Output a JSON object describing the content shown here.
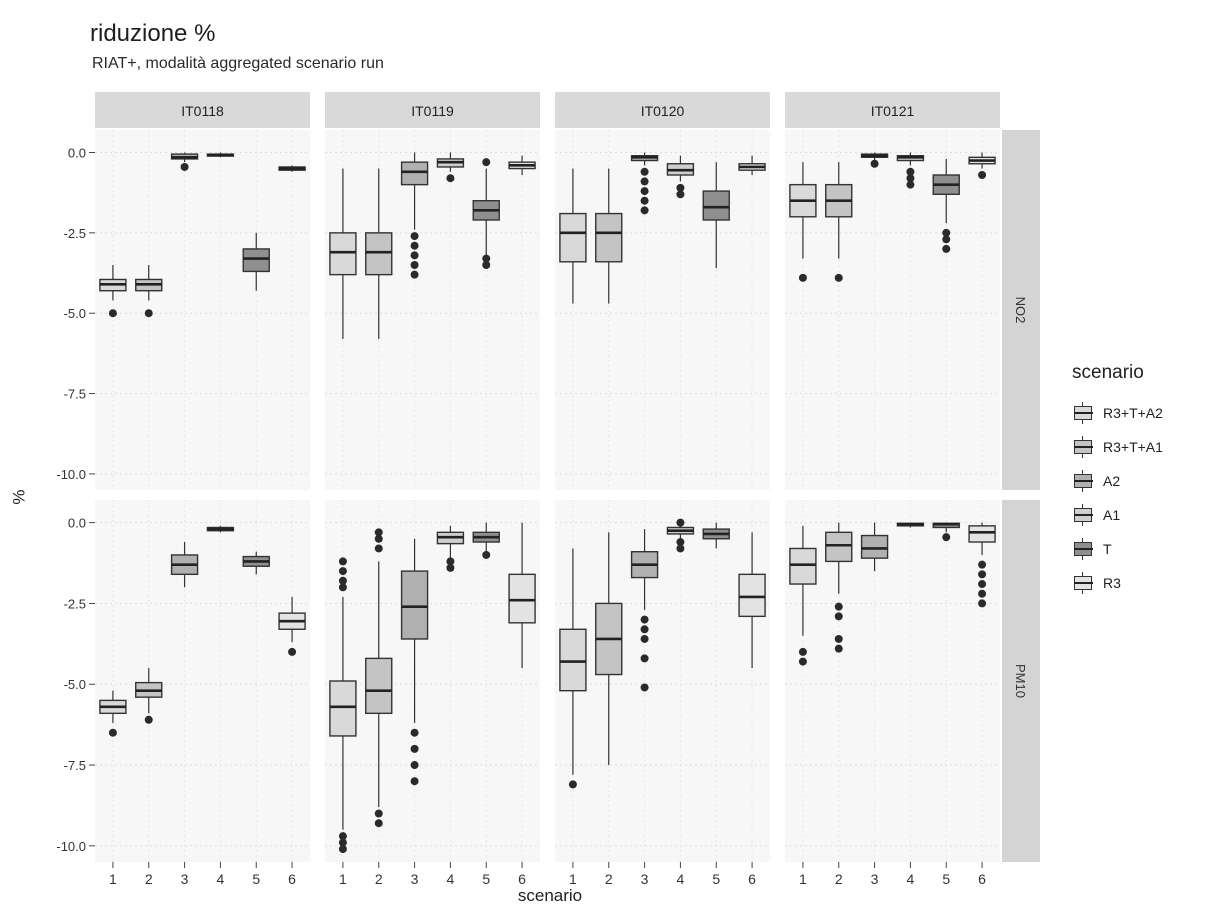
{
  "chart_data": {
    "type": "box",
    "title": "riduzione %",
    "subtitle": "RIAT+, modalità aggregated scenario run",
    "xlabel": "scenario",
    "ylabel": "%",
    "x_ticks": [
      "1",
      "2",
      "3",
      "4",
      "5",
      "6"
    ],
    "y_ticks": [
      "0.0",
      "-2.5",
      "-5.0",
      "-7.5",
      "-10.0"
    ],
    "ylim": [
      -10.5,
      0.7
    ],
    "facet_columns": [
      "IT0118",
      "IT0119",
      "IT0120",
      "IT0121"
    ],
    "facet_rows": [
      "NO2",
      "PM10"
    ],
    "legend": {
      "title": "scenario",
      "position": "right",
      "entries": [
        {
          "label": "R3+T+A2",
          "color": "#d9d9d9"
        },
        {
          "label": "R3+T+A1",
          "color": "#c4c4c4"
        },
        {
          "label": "A2",
          "color": "#b0b0b0"
        },
        {
          "label": "A1",
          "color": "#cfcfcf"
        },
        {
          "label": "T",
          "color": "#8f8f8f"
        },
        {
          "label": "R3",
          "color": "#e3e3e3"
        }
      ]
    },
    "panels": [
      {
        "station": "IT0118",
        "pollutant": "NO2",
        "boxes": [
          {
            "scenario": "1",
            "min": -4.6,
            "q1": -4.3,
            "median": -4.1,
            "q3": -3.95,
            "max": -3.5,
            "outliers": [
              -5.0
            ]
          },
          {
            "scenario": "2",
            "min": -4.6,
            "q1": -4.3,
            "median": -4.1,
            "q3": -3.95,
            "max": -3.5,
            "outliers": [
              -5.0
            ]
          },
          {
            "scenario": "3",
            "min": -0.3,
            "q1": -0.2,
            "median": -0.15,
            "q3": -0.05,
            "max": 0.0,
            "outliers": [
              -0.45
            ]
          },
          {
            "scenario": "4",
            "min": -0.15,
            "q1": -0.1,
            "median": -0.08,
            "q3": -0.05,
            "max": 0.0,
            "outliers": []
          },
          {
            "scenario": "5",
            "min": -4.3,
            "q1": -3.7,
            "median": -3.3,
            "q3": -3.0,
            "max": -2.5,
            "outliers": []
          },
          {
            "scenario": "6",
            "min": -0.6,
            "q1": -0.55,
            "median": -0.5,
            "q3": -0.45,
            "max": -0.4,
            "outliers": []
          }
        ]
      },
      {
        "station": "IT0119",
        "pollutant": "NO2",
        "boxes": [
          {
            "scenario": "1",
            "min": -5.8,
            "q1": -3.8,
            "median": -3.1,
            "q3": -2.5,
            "max": -0.5,
            "outliers": []
          },
          {
            "scenario": "2",
            "min": -5.8,
            "q1": -3.8,
            "median": -3.1,
            "q3": -2.5,
            "max": -0.5,
            "outliers": []
          },
          {
            "scenario": "3",
            "min": -2.4,
            "q1": -1.0,
            "median": -0.6,
            "q3": -0.3,
            "max": 0.0,
            "outliers": [
              -2.6,
              -2.9,
              -3.2,
              -3.5,
              -3.8
            ]
          },
          {
            "scenario": "4",
            "min": -0.6,
            "q1": -0.45,
            "median": -0.3,
            "q3": -0.2,
            "max": 0.0,
            "outliers": [
              -0.8
            ]
          },
          {
            "scenario": "5",
            "min": -3.2,
            "q1": -2.1,
            "median": -1.8,
            "q3": -1.5,
            "max": -0.5,
            "outliers": [
              -0.3,
              -3.3,
              -3.5
            ]
          },
          {
            "scenario": "6",
            "min": -0.7,
            "q1": -0.5,
            "median": -0.4,
            "q3": -0.3,
            "max": -0.1,
            "outliers": []
          }
        ]
      },
      {
        "station": "IT0120",
        "pollutant": "NO2",
        "boxes": [
          {
            "scenario": "1",
            "min": -4.7,
            "q1": -3.4,
            "median": -2.5,
            "q3": -1.9,
            "max": -0.5,
            "outliers": []
          },
          {
            "scenario": "2",
            "min": -4.7,
            "q1": -3.4,
            "median": -2.5,
            "q3": -1.9,
            "max": -0.5,
            "outliers": []
          },
          {
            "scenario": "3",
            "min": -0.4,
            "q1": -0.25,
            "median": -0.15,
            "q3": -0.1,
            "max": 0.0,
            "outliers": [
              -0.6,
              -0.9,
              -1.2,
              -1.5,
              -1.8
            ]
          },
          {
            "scenario": "4",
            "min": -0.9,
            "q1": -0.7,
            "median": -0.55,
            "q3": -0.35,
            "max": -0.1,
            "outliers": [
              -1.1,
              -1.3
            ]
          },
          {
            "scenario": "5",
            "min": -3.6,
            "q1": -2.1,
            "median": -1.7,
            "q3": -1.2,
            "max": -0.3,
            "outliers": []
          },
          {
            "scenario": "6",
            "min": -0.7,
            "q1": -0.55,
            "median": -0.45,
            "q3": -0.35,
            "max": -0.1,
            "outliers": []
          }
        ]
      },
      {
        "station": "IT0121",
        "pollutant": "NO2",
        "boxes": [
          {
            "scenario": "1",
            "min": -3.3,
            "q1": -2.0,
            "median": -1.5,
            "q3": -1.0,
            "max": -0.3,
            "outliers": [
              -3.9
            ]
          },
          {
            "scenario": "2",
            "min": -3.3,
            "q1": -2.0,
            "median": -1.5,
            "q3": -1.0,
            "max": -0.3,
            "outliers": [
              -3.9
            ]
          },
          {
            "scenario": "3",
            "min": -0.25,
            "q1": -0.15,
            "median": -0.1,
            "q3": -0.05,
            "max": 0.0,
            "outliers": [
              -0.35
            ]
          },
          {
            "scenario": "4",
            "min": -0.4,
            "q1": -0.25,
            "median": -0.15,
            "q3": -0.1,
            "max": 0.0,
            "outliers": [
              -0.6,
              -0.8,
              -1.0
            ]
          },
          {
            "scenario": "5",
            "min": -2.2,
            "q1": -1.3,
            "median": -1.0,
            "q3": -0.7,
            "max": -0.2,
            "outliers": [
              -2.5,
              -2.7,
              -3.0
            ]
          },
          {
            "scenario": "6",
            "min": -0.5,
            "q1": -0.35,
            "median": -0.25,
            "q3": -0.15,
            "max": 0.0,
            "outliers": [
              -0.7
            ]
          }
        ]
      },
      {
        "station": "IT0118",
        "pollutant": "PM10",
        "boxes": [
          {
            "scenario": "1",
            "min": -6.2,
            "q1": -5.9,
            "median": -5.7,
            "q3": -5.5,
            "max": -5.2,
            "outliers": [
              -6.5
            ]
          },
          {
            "scenario": "2",
            "min": -5.9,
            "q1": -5.4,
            "median": -5.2,
            "q3": -4.95,
            "max": -4.5,
            "outliers": [
              -6.1
            ]
          },
          {
            "scenario": "3",
            "min": -2.0,
            "q1": -1.6,
            "median": -1.3,
            "q3": -1.0,
            "max": -0.6,
            "outliers": []
          },
          {
            "scenario": "4",
            "min": -0.3,
            "q1": -0.25,
            "median": -0.2,
            "q3": -0.15,
            "max": -0.1,
            "outliers": []
          },
          {
            "scenario": "5",
            "min": -1.6,
            "q1": -1.35,
            "median": -1.2,
            "q3": -1.05,
            "max": -0.9,
            "outliers": []
          },
          {
            "scenario": "6",
            "min": -3.7,
            "q1": -3.3,
            "median": -3.05,
            "q3": -2.8,
            "max": -2.3,
            "outliers": [
              -4.0
            ]
          }
        ]
      },
      {
        "station": "IT0119",
        "pollutant": "PM10",
        "boxes": [
          {
            "scenario": "1",
            "min": -9.5,
            "q1": -6.6,
            "median": -5.7,
            "q3": -4.9,
            "max": -2.3,
            "outliers": [
              -1.2,
              -1.5,
              -1.8,
              -2.0,
              -9.7,
              -9.9,
              -10.1
            ]
          },
          {
            "scenario": "2",
            "min": -8.8,
            "q1": -5.9,
            "median": -5.2,
            "q3": -4.2,
            "max": -1.2,
            "outliers": [
              -0.3,
              -0.5,
              -0.8,
              -9.0,
              -9.3
            ]
          },
          {
            "scenario": "3",
            "min": -6.2,
            "q1": -3.6,
            "median": -2.6,
            "q3": -1.5,
            "max": -0.5,
            "outliers": [
              -6.5,
              -7.0,
              -7.5,
              -8.0
            ]
          },
          {
            "scenario": "4",
            "min": -1.1,
            "q1": -0.65,
            "median": -0.45,
            "q3": -0.3,
            "max": -0.1,
            "outliers": [
              -1.2,
              -1.4
            ]
          },
          {
            "scenario": "5",
            "min": -0.9,
            "q1": -0.6,
            "median": -0.45,
            "q3": -0.3,
            "max": 0.0,
            "outliers": [
              -1.0
            ]
          },
          {
            "scenario": "6",
            "min": -4.5,
            "q1": -3.1,
            "median": -2.4,
            "q3": -1.6,
            "max": 0.0,
            "outliers": []
          }
        ]
      },
      {
        "station": "IT0120",
        "pollutant": "PM10",
        "boxes": [
          {
            "scenario": "1",
            "min": -7.8,
            "q1": -5.2,
            "median": -4.3,
            "q3": -3.3,
            "max": -0.8,
            "outliers": [
              -8.1
            ]
          },
          {
            "scenario": "2",
            "min": -7.5,
            "q1": -4.7,
            "median": -3.6,
            "q3": -2.5,
            "max": -0.3,
            "outliers": []
          },
          {
            "scenario": "3",
            "min": -2.7,
            "q1": -1.7,
            "median": -1.3,
            "q3": -0.9,
            "max": -0.2,
            "outliers": [
              -3.0,
              -3.3,
              -3.6,
              -4.2,
              -5.1
            ]
          },
          {
            "scenario": "4",
            "min": -0.5,
            "q1": -0.35,
            "median": -0.25,
            "q3": -0.15,
            "max": 0.0,
            "outliers": [
              -0.6,
              -0.8,
              0.0
            ]
          },
          {
            "scenario": "5",
            "min": -0.8,
            "q1": -0.5,
            "median": -0.35,
            "q3": -0.2,
            "max": 0.0,
            "outliers": []
          },
          {
            "scenario": "6",
            "min": -4.5,
            "q1": -2.9,
            "median": -2.3,
            "q3": -1.6,
            "max": -0.3,
            "outliers": []
          }
        ]
      },
      {
        "station": "IT0121",
        "pollutant": "PM10",
        "boxes": [
          {
            "scenario": "1",
            "min": -3.5,
            "q1": -1.9,
            "median": -1.3,
            "q3": -0.8,
            "max": -0.1,
            "outliers": [
              -4.0,
              -4.3
            ]
          },
          {
            "scenario": "2",
            "min": -2.2,
            "q1": -1.2,
            "median": -0.7,
            "q3": -0.3,
            "max": 0.0,
            "outliers": [
              -2.6,
              -2.9,
              -3.6,
              -3.9
            ]
          },
          {
            "scenario": "3",
            "min": -1.5,
            "q1": -1.1,
            "median": -0.8,
            "q3": -0.4,
            "max": 0.0,
            "outliers": []
          },
          {
            "scenario": "4",
            "min": -0.15,
            "q1": -0.1,
            "median": -0.05,
            "q3": -0.02,
            "max": 0.0,
            "outliers": []
          },
          {
            "scenario": "5",
            "min": -0.3,
            "q1": -0.15,
            "median": -0.05,
            "q3": -0.02,
            "max": 0.0,
            "outliers": [
              -0.45
            ]
          },
          {
            "scenario": "6",
            "min": -1.0,
            "q1": -0.6,
            "median": -0.3,
            "q3": -0.1,
            "max": 0.0,
            "outliers": [
              -1.3,
              -1.6,
              -1.9,
              -2.2,
              -2.5
            ]
          }
        ]
      }
    ]
  }
}
